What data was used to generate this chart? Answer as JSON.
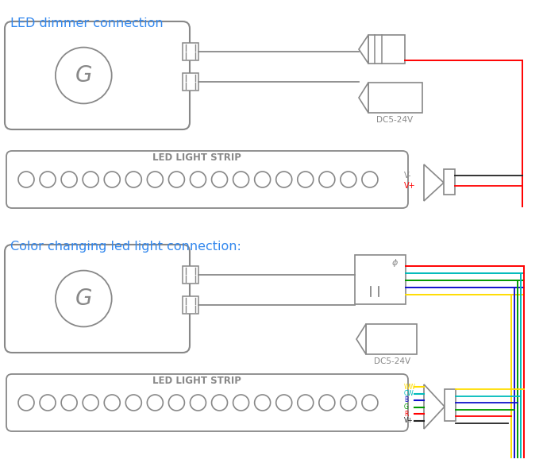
{
  "title1": "LED dimmer connection",
  "title2": "Color changing led light connection:",
  "title_color": "#3388ee",
  "bg_color": "#ffffff",
  "gc": "#888888",
  "red": "#ff0000",
  "yellow": "#ffdd00",
  "cyan": "#00bbbb",
  "blue": "#1111cc",
  "green": "#009900",
  "black": "#222222",
  "strip_label": "LED LIGHT STRIP",
  "n_leds": 17,
  "vminus": "V-",
  "vplus": "V+",
  "dc": "DC5-24V",
  "ww": "WW",
  "cw": "CW",
  "b": "B",
  "g": "G",
  "r": "R"
}
